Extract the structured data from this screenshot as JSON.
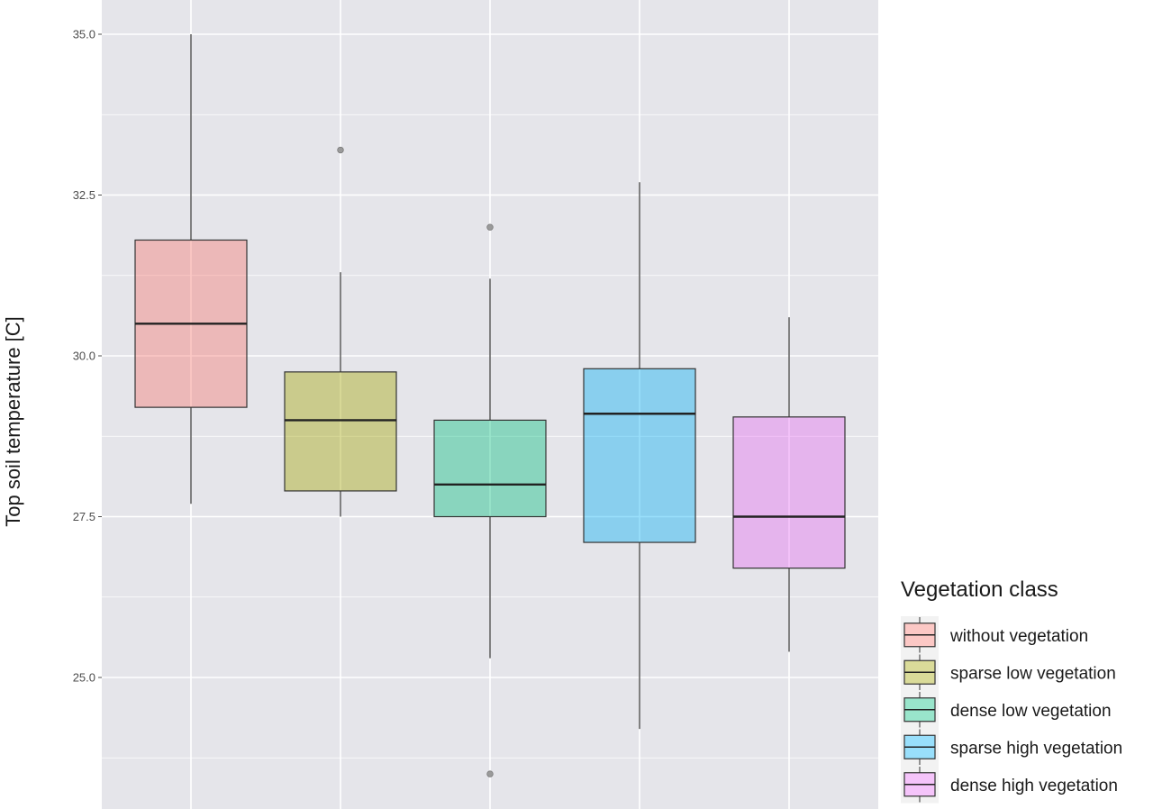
{
  "chart_data": {
    "type": "box",
    "title": "",
    "xlabel": "",
    "ylabel": "Top soil temperature [C]",
    "ylim": [
      22.8,
      35.5
    ],
    "yticks": [
      25.0,
      27.5,
      30.0,
      32.5,
      35.0
    ],
    "ytick_labels": [
      "25.0",
      "27.5",
      "30.0",
      "32.5",
      "35.0"
    ],
    "grid": true,
    "panel_background": "#e5e5ea",
    "legend": {
      "title": "Vegetation class",
      "position": "right"
    },
    "series": [
      {
        "name": "without vegetation",
        "color": "#f8766d",
        "fill_alpha": 0.4,
        "whisker_low": 27.7,
        "q1": 29.2,
        "median": 30.5,
        "q3": 31.8,
        "whisker_high": 35.0,
        "outliers": []
      },
      {
        "name": "sparse low vegetation",
        "color": "#a3a500",
        "fill_alpha": 0.4,
        "whisker_low": 27.5,
        "q1": 27.9,
        "median": 29.0,
        "q3": 29.75,
        "whisker_high": 31.3,
        "outliers": [
          33.2
        ]
      },
      {
        "name": "dense low vegetation",
        "color": "#00bf7d",
        "fill_alpha": 0.4,
        "whisker_low": 25.3,
        "q1": 27.5,
        "median": 28.0,
        "q3": 29.0,
        "whisker_high": 31.2,
        "outliers": [
          32.0,
          23.5
        ]
      },
      {
        "name": "sparse high vegetation",
        "color": "#00b0f6",
        "fill_alpha": 0.4,
        "whisker_low": 24.2,
        "q1": 27.1,
        "median": 29.1,
        "q3": 29.8,
        "whisker_high": 32.7,
        "outliers": []
      },
      {
        "name": "dense high vegetation",
        "color": "#e76bf3",
        "fill_alpha": 0.4,
        "whisker_low": 25.4,
        "q1": 26.7,
        "median": 27.5,
        "q3": 29.05,
        "whisker_high": 30.6,
        "outliers": []
      }
    ]
  }
}
